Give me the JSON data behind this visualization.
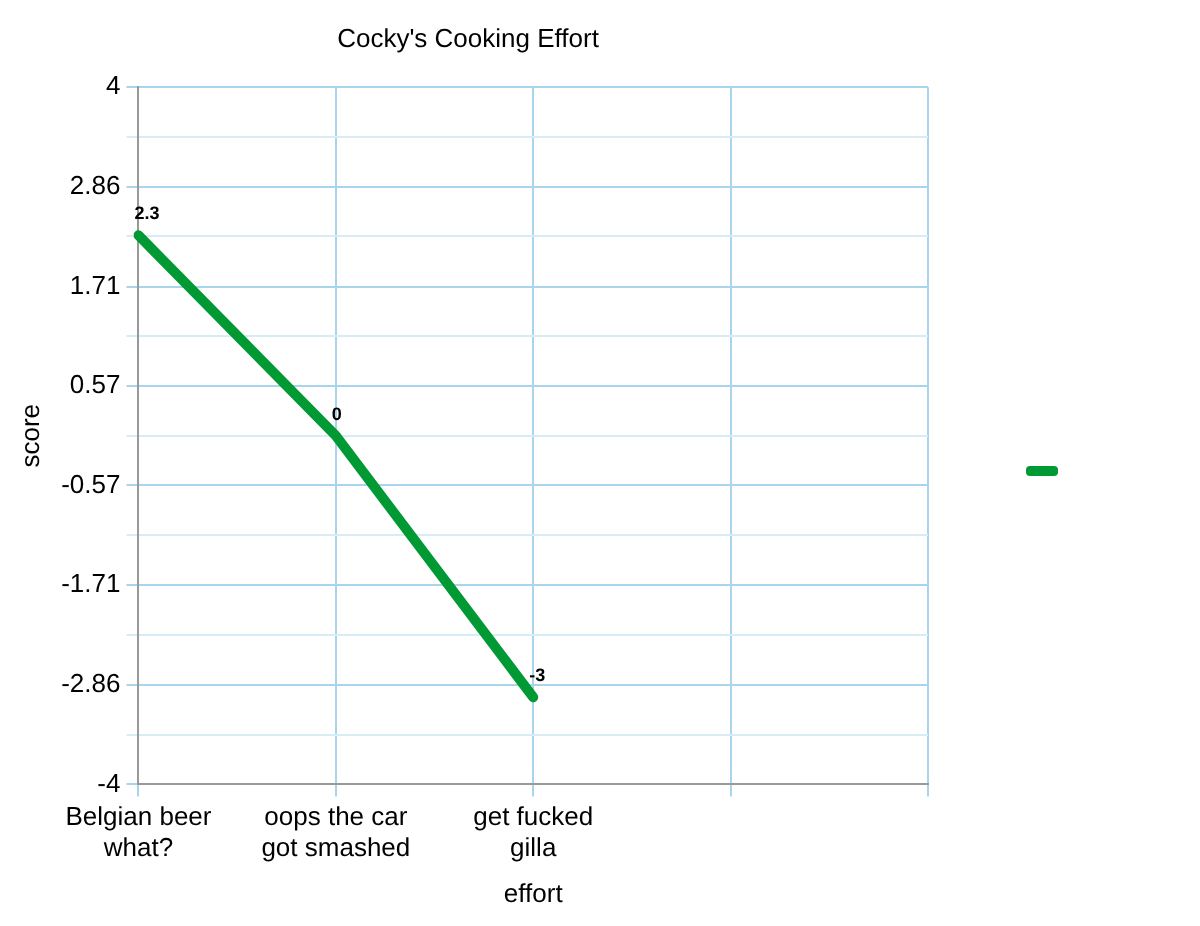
{
  "chart_data": {
    "type": "line",
    "title": "Cocky's Cooking Effort",
    "xlabel": "effort",
    "ylabel": "score",
    "categories": [
      "Belgian beer what?",
      "oops the car got smashed",
      "get fucked gilla",
      null,
      null
    ],
    "series": [
      {
        "color": "#009933",
        "values": [
          2.3,
          0,
          -3,
          null,
          null
        ]
      }
    ],
    "ylim": [
      -4,
      4
    ],
    "yticks": [
      -4,
      {
        "value": -3.43,
        "label": null
      },
      -2.86,
      {
        "value": -2.29,
        "label": null
      },
      -1.71,
      {
        "value": -1.14,
        "label": null
      },
      -0.57,
      {
        "value": 0,
        "label": null
      },
      0.57,
      {
        "value": 1.14,
        "label": null
      },
      1.71,
      {
        "value": 2.29,
        "label": null
      },
      2.86,
      {
        "value": 3.43,
        "label": null
      },
      4
    ],
    "grid": true,
    "marker": "none",
    "line_style": "solid",
    "data_labels": true
  }
}
